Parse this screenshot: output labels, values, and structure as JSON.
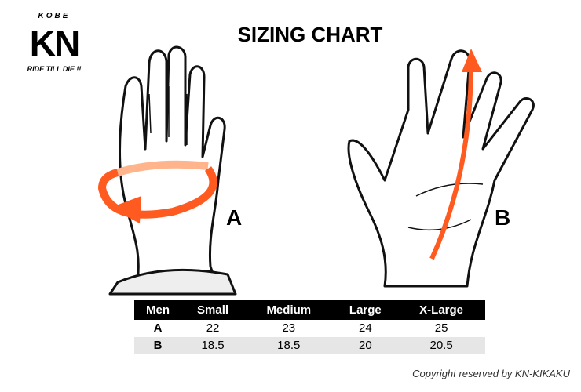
{
  "logo": {
    "top": "KOBE",
    "main": "KN",
    "tagline": "RIDE TILL DIE !!"
  },
  "title": "SIZING CHART",
  "labels": {
    "a": "A",
    "b": "B"
  },
  "colors": {
    "accent": "#ff5a1f",
    "accent_light": "#ffb48c",
    "header_bg": "#000000",
    "alt_row": "#e6e6e6"
  },
  "table": {
    "headers": [
      "Men",
      "Small",
      "Medium",
      "Large",
      "X-Large"
    ],
    "rows": [
      [
        "A",
        "22",
        "23",
        "24",
        "25"
      ],
      [
        "B",
        "18.5",
        "18.5",
        "20",
        "20.5"
      ]
    ]
  },
  "copyright": "Copyright reserved by KN-KIKAKU"
}
